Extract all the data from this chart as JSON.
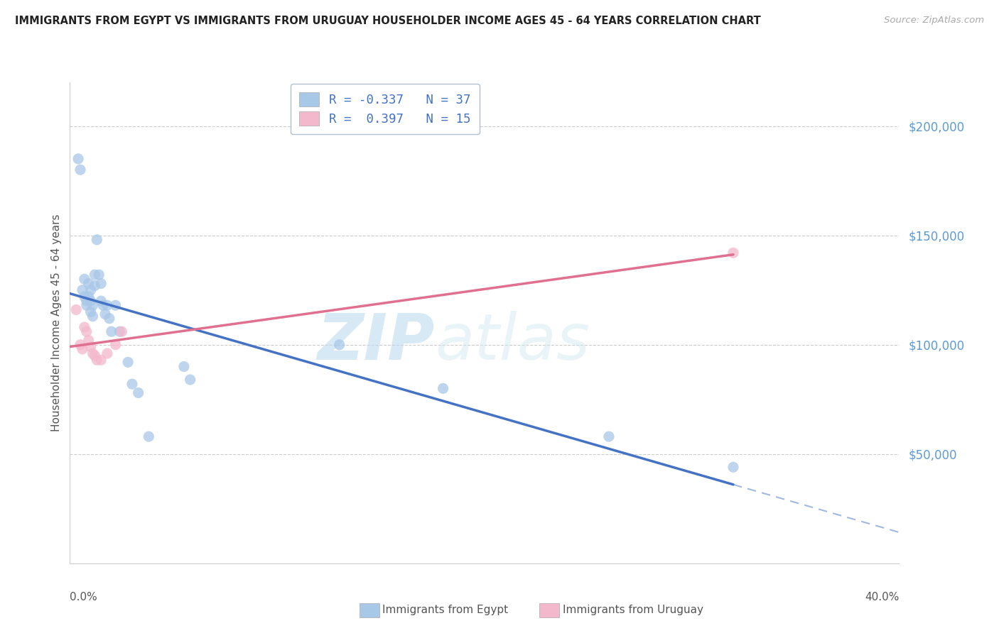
{
  "title": "IMMIGRANTS FROM EGYPT VS IMMIGRANTS FROM URUGUAY HOUSEHOLDER INCOME AGES 45 - 64 YEARS CORRELATION CHART",
  "source": "Source: ZipAtlas.com",
  "ylabel": "Householder Income Ages 45 - 64 years",
  "xlim": [
    0.0,
    0.4
  ],
  "ylim": [
    0,
    220000
  ],
  "egypt_color": "#a8c8e8",
  "uruguay_color": "#f4b8cc",
  "egypt_x": [
    0.004,
    0.005,
    0.006,
    0.007,
    0.007,
    0.008,
    0.008,
    0.009,
    0.009,
    0.01,
    0.01,
    0.01,
    0.011,
    0.011,
    0.012,
    0.012,
    0.013,
    0.014,
    0.015,
    0.015,
    0.016,
    0.017,
    0.018,
    0.019,
    0.02,
    0.022,
    0.024,
    0.028,
    0.03,
    0.033,
    0.038,
    0.055,
    0.058,
    0.13,
    0.18,
    0.26,
    0.32
  ],
  "egypt_y": [
    185000,
    180000,
    125000,
    130000,
    122000,
    120000,
    118000,
    128000,
    122000,
    125000,
    120000,
    115000,
    118000,
    113000,
    132000,
    127000,
    148000,
    132000,
    128000,
    120000,
    118000,
    114000,
    118000,
    112000,
    106000,
    118000,
    106000,
    92000,
    82000,
    78000,
    58000,
    90000,
    84000,
    100000,
    80000,
    58000,
    44000
  ],
  "uruguay_x": [
    0.003,
    0.005,
    0.006,
    0.007,
    0.008,
    0.009,
    0.01,
    0.011,
    0.012,
    0.013,
    0.015,
    0.018,
    0.022,
    0.025,
    0.32
  ],
  "uruguay_y": [
    116000,
    100000,
    98000,
    108000,
    106000,
    102000,
    99000,
    96000,
    95000,
    93000,
    93000,
    96000,
    100000,
    106000,
    142000
  ],
  "background_color": "#ffffff",
  "grid_color": "#cccccc",
  "watermark_text": "ZIPatlas",
  "egypt_line_color": "#4472c4",
  "uruguay_line_color": "#e07090",
  "legend_egypt_label": "R = -0.337   N = 37",
  "legend_uruguay_label": "R =  0.397   N = 15",
  "ytick_color": "#5b9bd5",
  "text_color": "#555555",
  "title_color": "#222222"
}
